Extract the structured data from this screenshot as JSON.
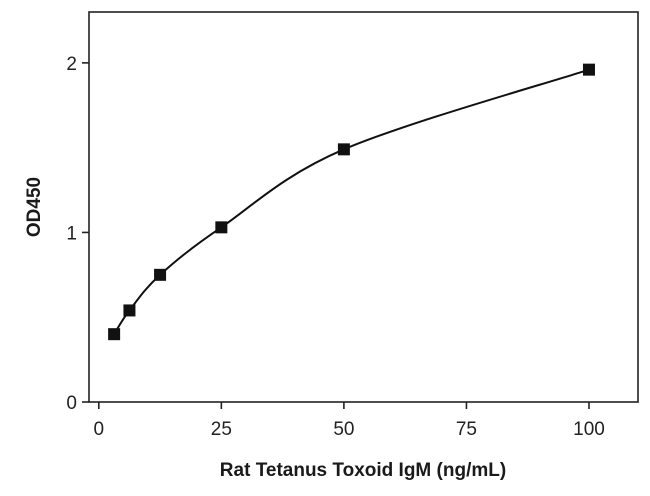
{
  "chart_data": {
    "type": "scatter",
    "title": "",
    "xlabel": "Rat Tetanus Toxoid IgM (ng/mL)",
    "ylabel": "OD450",
    "xlim": [
      -2,
      110
    ],
    "ylim": [
      0,
      2.3
    ],
    "x_ticks": [
      0,
      25,
      50,
      75,
      100
    ],
    "y_ticks": [
      0,
      1,
      2
    ],
    "grid": false,
    "legend": "none",
    "series": [
      {
        "marker": "square",
        "color": "#111111",
        "x": [
          3.125,
          6.25,
          12.5,
          25,
          50,
          100
        ],
        "y": [
          0.4,
          0.54,
          0.75,
          1.03,
          1.49,
          1.96
        ]
      }
    ],
    "fit_curve": true
  }
}
